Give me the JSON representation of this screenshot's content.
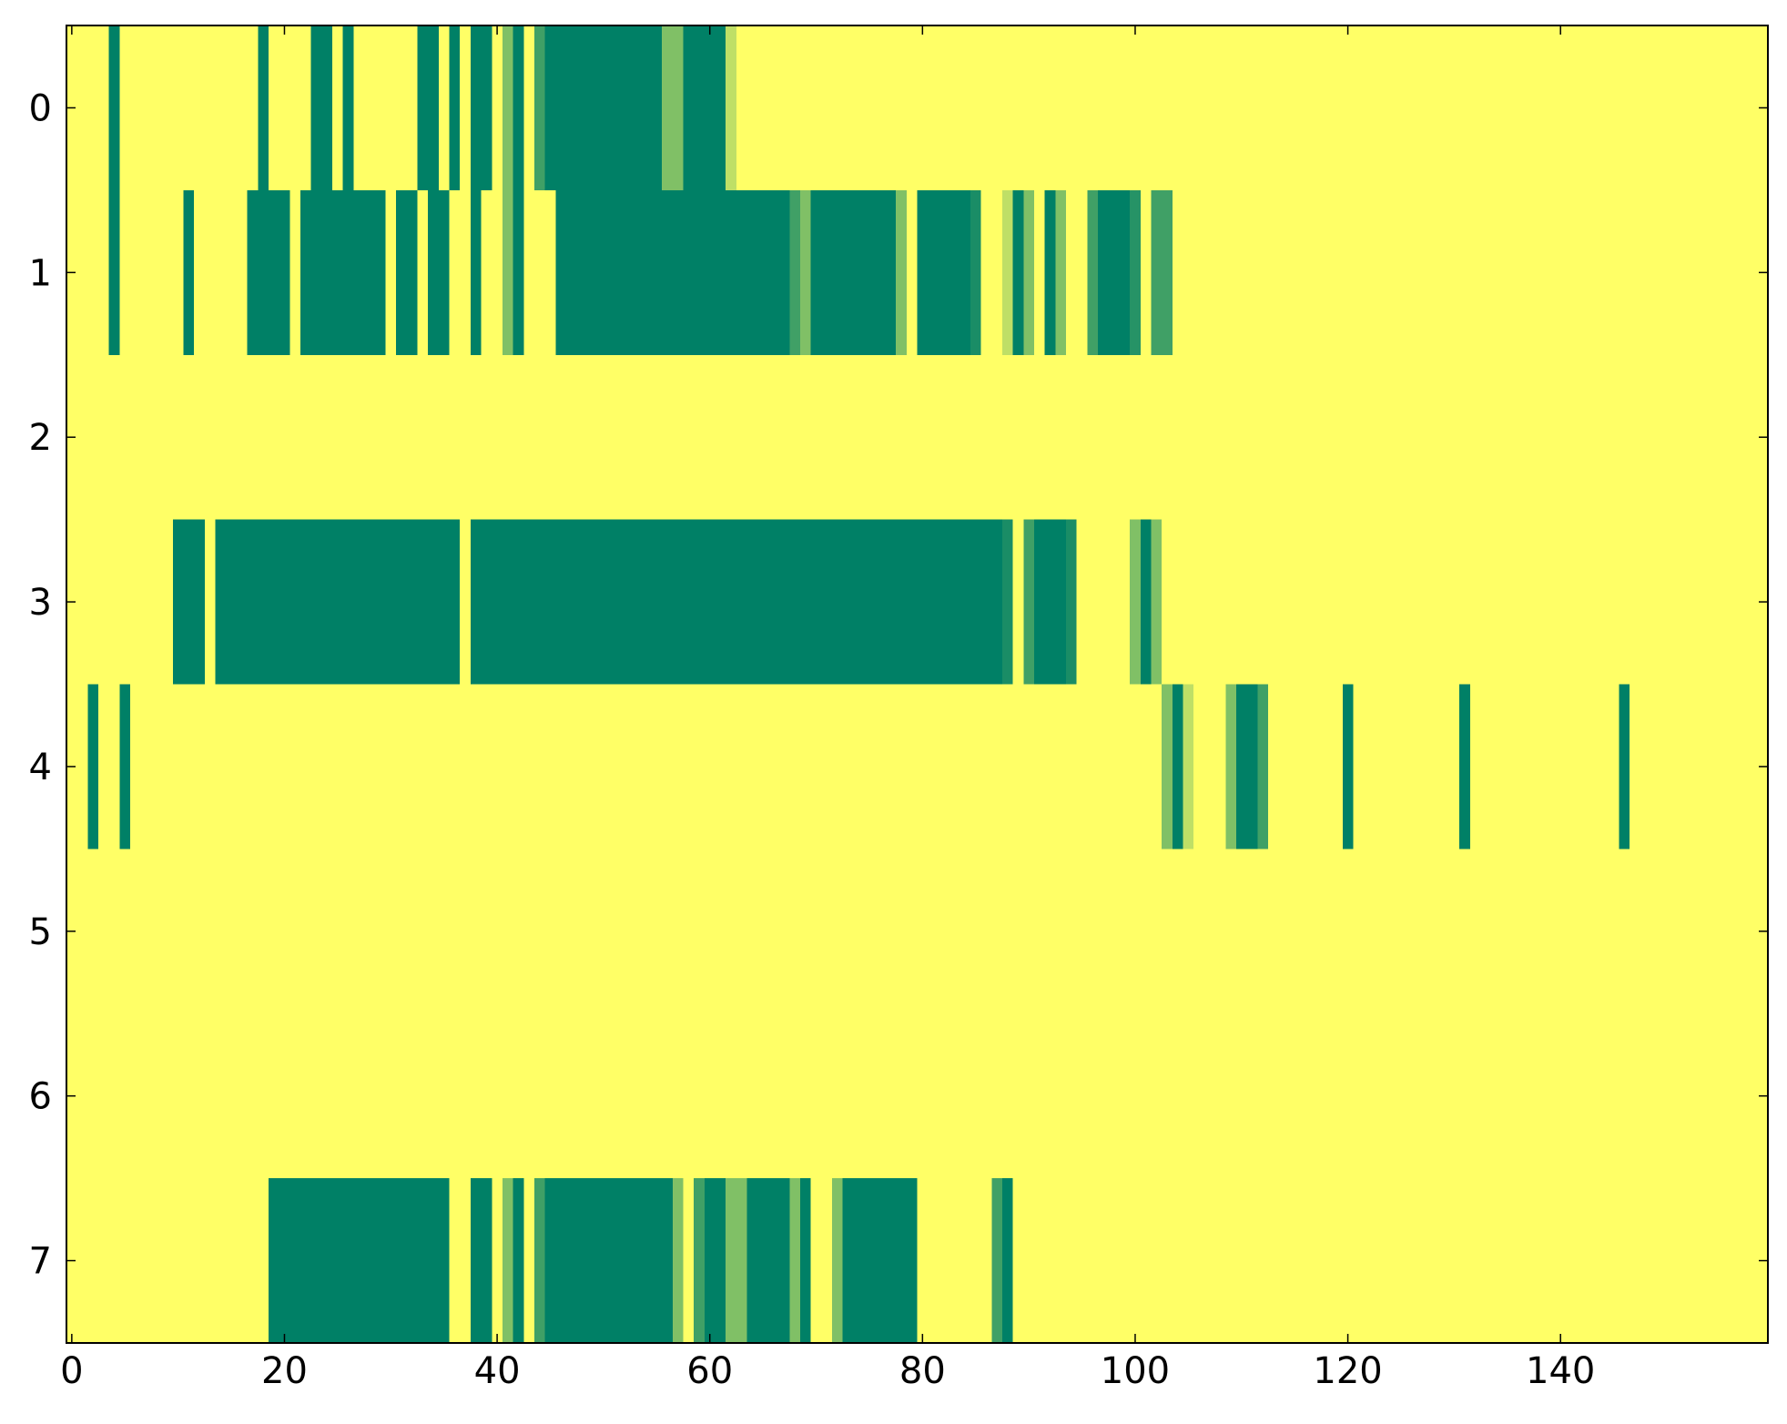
{
  "chart_data": {
    "type": "heatmap",
    "xlim": [
      -0.5,
      159.5
    ],
    "ylim": [
      7.5,
      -0.5
    ],
    "xticks": [
      0,
      20,
      40,
      60,
      80,
      100,
      120,
      140
    ],
    "yticks": [
      0,
      1,
      2,
      3,
      4,
      5,
      6,
      7
    ],
    "colormap": [
      "#ffff66",
      "#008066"
    ],
    "z": [
      [
        0,
        0,
        0,
        0,
        1,
        0,
        0,
        0,
        0,
        0,
        0,
        0,
        0,
        0,
        0,
        0,
        0,
        0,
        1,
        0,
        0,
        0,
        0,
        1,
        1,
        0,
        1,
        0,
        0,
        0,
        0,
        0,
        0,
        1,
        1,
        0,
        1,
        0,
        1,
        1,
        0,
        0.5,
        1,
        0,
        0.75,
        1,
        1,
        1,
        1,
        1,
        1,
        1,
        1,
        1,
        1,
        1,
        0.5,
        0.5,
        1,
        1,
        1,
        1,
        0.25,
        0,
        0,
        0,
        0,
        0,
        0,
        0,
        0,
        0,
        0,
        0,
        0,
        0,
        0,
        0,
        0,
        0,
        0,
        0,
        0,
        0,
        0,
        0,
        0,
        0,
        0,
        0,
        0,
        0,
        0,
        0,
        0,
        0,
        0,
        0,
        0,
        0,
        0,
        0,
        0,
        0,
        0,
        0,
        0,
        0,
        0,
        0,
        0,
        0,
        0,
        0,
        0,
        0,
        0,
        0,
        0,
        0,
        0,
        0,
        0,
        0,
        0,
        0,
        0,
        0,
        0,
        0,
        0,
        0,
        0,
        0,
        0,
        0,
        0,
        0,
        0,
        0,
        0,
        0,
        0,
        0,
        0,
        0,
        0,
        0,
        0,
        0,
        0,
        0,
        0,
        0,
        0,
        0,
        0,
        0,
        0,
        0
      ],
      [
        0,
        0,
        0,
        0,
        1,
        0,
        0,
        0,
        0,
        0,
        0,
        1,
        0,
        0,
        0,
        0,
        0,
        1,
        1,
        1,
        1,
        0,
        1,
        1,
        1,
        1,
        1,
        1,
        1,
        1,
        0,
        1,
        1,
        0,
        1,
        1,
        0,
        0,
        1,
        0,
        0,
        0.5,
        1,
        0,
        0,
        0,
        1,
        1,
        1,
        1,
        1,
        1,
        1,
        1,
        1,
        1,
        1,
        1,
        1,
        1,
        1,
        1,
        1,
        1,
        1,
        1,
        1,
        1,
        0.75,
        0.5,
        1,
        1,
        1,
        1,
        1,
        1,
        1,
        1,
        0.5,
        0,
        1,
        1,
        1,
        1,
        1,
        0.9,
        0,
        0,
        0.25,
        1,
        0.5,
        0,
        1,
        0.5,
        0,
        0,
        0.75,
        1,
        1,
        1,
        0.85,
        0,
        0.75,
        0.75,
        0,
        0,
        0,
        0,
        0,
        0,
        0,
        0,
        0,
        0,
        0,
        0,
        0,
        0,
        0,
        0,
        0,
        0,
        0,
        0,
        0,
        0,
        0,
        0,
        0,
        0,
        0,
        0,
        0,
        0,
        0,
        0,
        0,
        0,
        0,
        0,
        0,
        0,
        0,
        0,
        0,
        0,
        0,
        0,
        0,
        0,
        0,
        0,
        0,
        0,
        0,
        0,
        0,
        0,
        0,
        0
      ],
      [
        0,
        0,
        0,
        0,
        0,
        0,
        0,
        0,
        0,
        0,
        0,
        0,
        0,
        0,
        0,
        0,
        0,
        0,
        0,
        0,
        0,
        0,
        0,
        0,
        0,
        0,
        0,
        0,
        0,
        0,
        0,
        0,
        0,
        0,
        0,
        0,
        0,
        0,
        0,
        0,
        0,
        0,
        0,
        0,
        0,
        0,
        0,
        0,
        0,
        0,
        0,
        0,
        0,
        0,
        0,
        0,
        0,
        0,
        0,
        0,
        0,
        0,
        0,
        0,
        0,
        0,
        0,
        0,
        0,
        0,
        0,
        0,
        0,
        0,
        0,
        0,
        0,
        0,
        0,
        0,
        0,
        0,
        0,
        0,
        0,
        0,
        0,
        0,
        0,
        0,
        0,
        0,
        0,
        0,
        0,
        0,
        0,
        0,
        0,
        0,
        0,
        0,
        0,
        0,
        0,
        0,
        0,
        0,
        0,
        0,
        0,
        0,
        0,
        0,
        0,
        0,
        0,
        0,
        0,
        0,
        0,
        0,
        0,
        0,
        0,
        0,
        0,
        0,
        0,
        0,
        0,
        0,
        0,
        0,
        0,
        0,
        0,
        0,
        0,
        0,
        0,
        0,
        0,
        0,
        0,
        0,
        0,
        0,
        0,
        0,
        0,
        0,
        0,
        0,
        0,
        0,
        0,
        0,
        0,
        0
      ],
      [
        0,
        0,
        0,
        0,
        0,
        0,
        0,
        0,
        0,
        0,
        1,
        1,
        1,
        0,
        1,
        1,
        1,
        1,
        1,
        1,
        1,
        1,
        1,
        1,
        1,
        1,
        1,
        1,
        1,
        1,
        1,
        1,
        1,
        1,
        1,
        1,
        1,
        0,
        1,
        1,
        1,
        1,
        1,
        1,
        1,
        1,
        1,
        1,
        1,
        1,
        1,
        1,
        1,
        1,
        1,
        1,
        1,
        1,
        1,
        1,
        1,
        1,
        1,
        1,
        1,
        1,
        1,
        1,
        1,
        1,
        1,
        1,
        1,
        1,
        1,
        1,
        1,
        1,
        1,
        1,
        1,
        1,
        1,
        1,
        1,
        1,
        1,
        1,
        0.9,
        0,
        0.75,
        1,
        1,
        1,
        0.9,
        0,
        0,
        0,
        0,
        0,
        0.5,
        1,
        0.5,
        0,
        0,
        0,
        0,
        0,
        0,
        0,
        0,
        0,
        0,
        0,
        0,
        0,
        0,
        0,
        0,
        0,
        0,
        0,
        0,
        0,
        0,
        0,
        0,
        0,
        0,
        0,
        0,
        0,
        0,
        0,
        0,
        0,
        0,
        0,
        0,
        0,
        0,
        0,
        0,
        0,
        0,
        0,
        0,
        0,
        0,
        0,
        0,
        0,
        0,
        0,
        0,
        0,
        0,
        0,
        0,
        0
      ],
      [
        0,
        0,
        1,
        0,
        0,
        1,
        0,
        0,
        0,
        0,
        0,
        0,
        0,
        0,
        0,
        0,
        0,
        0,
        0,
        0,
        0,
        0,
        0,
        0,
        0,
        0,
        0,
        0,
        0,
        0,
        0,
        0,
        0,
        0,
        0,
        0,
        0,
        0,
        0,
        0,
        0,
        0,
        0,
        0,
        0,
        0,
        0,
        0,
        0,
        0,
        0,
        0,
        0,
        0,
        0,
        0,
        0,
        0,
        0,
        0,
        0,
        0,
        0,
        0,
        0,
        0,
        0,
        0,
        0,
        0,
        0,
        0,
        0,
        0,
        0,
        0,
        0,
        0,
        0,
        0,
        0,
        0,
        0,
        0,
        0,
        0,
        0,
        0,
        0,
        0,
        0,
        0,
        0,
        0,
        0,
        0,
        0,
        0,
        0,
        0,
        0,
        0,
        0,
        0.5,
        1,
        0.25,
        0,
        0,
        0,
        0.5,
        1,
        1,
        0.75,
        0,
        0,
        0,
        0,
        0,
        0,
        0,
        1,
        0,
        0,
        0,
        0,
        0,
        0,
        0,
        0,
        0,
        0,
        1,
        0,
        0,
        0,
        0,
        0,
        0,
        0,
        0,
        0,
        0,
        0,
        0,
        0,
        0,
        1,
        0,
        0,
        0,
        0,
        0,
        0,
        0,
        0,
        0,
        0,
        0,
        0,
        0
      ],
      [
        0,
        0,
        0,
        0,
        0,
        0,
        0,
        0,
        0,
        0,
        0,
        0,
        0,
        0,
        0,
        0,
        0,
        0,
        0,
        0,
        0,
        0,
        0,
        0,
        0,
        0,
        0,
        0,
        0,
        0,
        0,
        0,
        0,
        0,
        0,
        0,
        0,
        0,
        0,
        0,
        0,
        0,
        0,
        0,
        0,
        0,
        0,
        0,
        0,
        0,
        0,
        0,
        0,
        0,
        0,
        0,
        0,
        0,
        0,
        0,
        0,
        0,
        0,
        0,
        0,
        0,
        0,
        0,
        0,
        0,
        0,
        0,
        0,
        0,
        0,
        0,
        0,
        0,
        0,
        0,
        0,
        0,
        0,
        0,
        0,
        0,
        0,
        0,
        0,
        0,
        0,
        0,
        0,
        0,
        0,
        0,
        0,
        0,
        0,
        0,
        0,
        0,
        0,
        0,
        0,
        0,
        0,
        0,
        0,
        0,
        0,
        0,
        0,
        0,
        0,
        0,
        0,
        0,
        0,
        0,
        0,
        0,
        0,
        0,
        0,
        0,
        0,
        0,
        0,
        0,
        0,
        0,
        0,
        0,
        0,
        0,
        0,
        0,
        0,
        0,
        0,
        0,
        0,
        0,
        0,
        0,
        0,
        0,
        0,
        0,
        0,
        0,
        0,
        0,
        0,
        0,
        0,
        0,
        0,
        0
      ],
      [
        0,
        0,
        0,
        0,
        0,
        0,
        0,
        0,
        0,
        0,
        0,
        0,
        0,
        0,
        0,
        0,
        0,
        0,
        0,
        0,
        0,
        0,
        0,
        0,
        0,
        0,
        0,
        0,
        0,
        0,
        0,
        0,
        0,
        0,
        0,
        0,
        0,
        0,
        0,
        0,
        0,
        0,
        0,
        0,
        0,
        0,
        0,
        0,
        0,
        0,
        0,
        0,
        0,
        0,
        0,
        0,
        0,
        0,
        0,
        0,
        0,
        0,
        0,
        0,
        0,
        0,
        0,
        0,
        0,
        0,
        0,
        0,
        0,
        0,
        0,
        0,
        0,
        0,
        0,
        0,
        0,
        0,
        0,
        0,
        0,
        0,
        0,
        0,
        0,
        0,
        0,
        0,
        0,
        0,
        0,
        0,
        0,
        0,
        0,
        0,
        0,
        0,
        0,
        0,
        0,
        0,
        0,
        0,
        0,
        0,
        0,
        0,
        0,
        0,
        0,
        0,
        0,
        0,
        0,
        0,
        0,
        0,
        0,
        0,
        0,
        0,
        0,
        0,
        0,
        0,
        0,
        0,
        0,
        0,
        0,
        0,
        0,
        0,
        0,
        0,
        0,
        0,
        0,
        0,
        0,
        0,
        0,
        0,
        0,
        0,
        0,
        0,
        0,
        0,
        0,
        0,
        0,
        0,
        0,
        0
      ],
      [
        0,
        0,
        0,
        0,
        0,
        0,
        0,
        0,
        0,
        0,
        0,
        0,
        0,
        0,
        0,
        0,
        0,
        0,
        0,
        1,
        1,
        1,
        1,
        1,
        1,
        1,
        1,
        1,
        1,
        1,
        1,
        1,
        1,
        1,
        1,
        1,
        0,
        0,
        1,
        1,
        0,
        0.5,
        1,
        0,
        0.75,
        1,
        1,
        1,
        1,
        1,
        1,
        1,
        1,
        1,
        1,
        1,
        1,
        0.5,
        0,
        0.75,
        1,
        1,
        0.5,
        0.5,
        1,
        1,
        1,
        1,
        0.5,
        1,
        0,
        0,
        0.5,
        1,
        1,
        1,
        1,
        1,
        1,
        1,
        0,
        0,
        0,
        0,
        0,
        0,
        0,
        0.75,
        1,
        0,
        0,
        0,
        0,
        0,
        0,
        0,
        0,
        0,
        0,
        0,
        0,
        0,
        0,
        0,
        0,
        0,
        0,
        0,
        0,
        0,
        0,
        0,
        0,
        0,
        0,
        0,
        0,
        0,
        0,
        0,
        0,
        0,
        0,
        0,
        0,
        0,
        0,
        0,
        0,
        0,
        0,
        0,
        0,
        0,
        0,
        0,
        0,
        0,
        0,
        0,
        0,
        0,
        0,
        0,
        0,
        0,
        0,
        0,
        0,
        0,
        0,
        0,
        0,
        0,
        0,
        0,
        0,
        0,
        0,
        0
      ]
    ]
  }
}
